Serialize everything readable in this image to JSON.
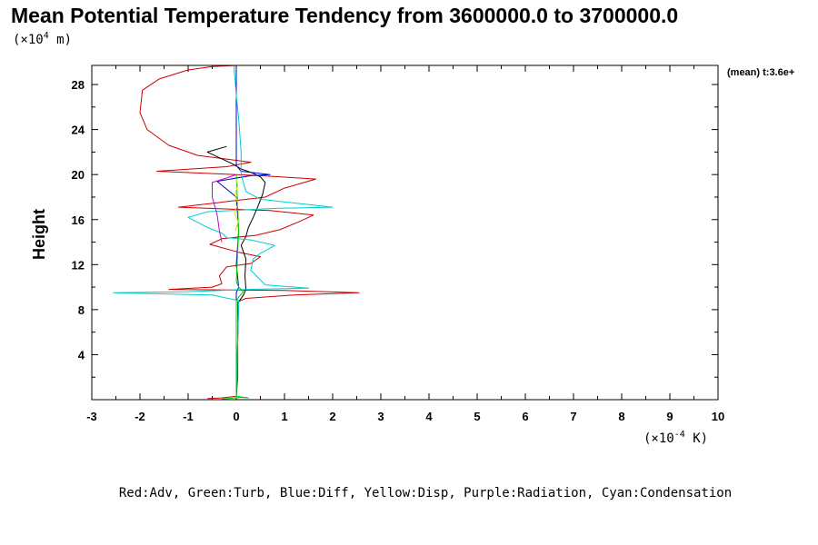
{
  "chart_data": {
    "type": "line",
    "title": "Mean Potential Temperature Tendency from 3600000.0 to 3700000.0",
    "ylabel": "Height",
    "y_unit": {
      "prefix": "(×10",
      "exp": "4",
      "suffix": " m)"
    },
    "x_unit": {
      "prefix": "(×10",
      "exp": "-4",
      "suffix": " K)"
    },
    "corner_label": "(mean) t:3.6e+",
    "legend_text": "Red:Adv, Green:Turb, Blue:Diff, Yellow:Disp, Purple:Radiation, Cyan:Condensation",
    "xlim": [
      -3,
      10
    ],
    "ylim": [
      0,
      29.7
    ],
    "x_ticks": [
      "-3",
      "-2",
      "-1",
      "0",
      "1",
      "2",
      "3",
      "4",
      "5",
      "6",
      "7",
      "8",
      "9",
      "10"
    ],
    "y_ticks": [
      "4",
      "8",
      "12",
      "16",
      "20",
      "24",
      "28"
    ],
    "series": [
      {
        "color": "#cc0000",
        "points": [
          [
            -0.6,
            0.1
          ],
          [
            -0.3,
            0.15
          ],
          [
            0,
            0.3
          ],
          [
            0.03,
            2
          ],
          [
            0.03,
            8.7
          ],
          [
            0.2,
            9.0
          ],
          [
            1.2,
            9.3
          ],
          [
            2.55,
            9.5
          ],
          [
            1.0,
            9.7
          ],
          [
            -1.4,
            9.8
          ],
          [
            -0.5,
            10.0
          ],
          [
            -0.3,
            10.3
          ],
          [
            -0.35,
            11.0
          ],
          [
            -0.2,
            11.8
          ],
          [
            0.3,
            12.1
          ],
          [
            0.5,
            12.7
          ],
          [
            0.05,
            13.1
          ],
          [
            -0.55,
            13.8
          ],
          [
            -0.3,
            14.3
          ],
          [
            0.4,
            14.6
          ],
          [
            0.9,
            15.1
          ],
          [
            1.3,
            15.8
          ],
          [
            1.6,
            16.4
          ],
          [
            0.7,
            16.8
          ],
          [
            -1.2,
            17.1
          ],
          [
            -0.4,
            17.5
          ],
          [
            0.6,
            18.0
          ],
          [
            1.0,
            18.8
          ],
          [
            1.65,
            19.6
          ],
          [
            0.5,
            19.9
          ],
          [
            -1.65,
            20.3
          ],
          [
            -0.2,
            20.7
          ],
          [
            0.3,
            21.1
          ],
          [
            -0.8,
            21.7
          ],
          [
            -1.4,
            22.6
          ],
          [
            -1.85,
            24.0
          ],
          [
            -2.0,
            25.5
          ],
          [
            -1.95,
            27.5
          ],
          [
            -1.6,
            28.5
          ],
          [
            -1.0,
            29.3
          ],
          [
            -0.5,
            29.6
          ],
          [
            0,
            29.7
          ]
        ]
      },
      {
        "color": "#000000",
        "points": [
          [
            0,
            0.2
          ],
          [
            0.05,
            8.7
          ],
          [
            0.15,
            9.3
          ],
          [
            0.2,
            9.8
          ],
          [
            0.18,
            11
          ],
          [
            0.2,
            12.5
          ],
          [
            0.1,
            13.7
          ],
          [
            0.2,
            14.5
          ],
          [
            0.25,
            15.3
          ],
          [
            0.35,
            16.2
          ],
          [
            0.45,
            17.2
          ],
          [
            0.55,
            18.3
          ],
          [
            0.6,
            19.3
          ],
          [
            0.5,
            19.8
          ],
          [
            0.3,
            20.2
          ],
          [
            0.1,
            20.5
          ],
          [
            -0.1,
            21.0
          ],
          [
            -0.4,
            21.6
          ],
          [
            -0.6,
            22.0
          ],
          [
            -0.2,
            22.5
          ]
        ]
      },
      {
        "color": "#0000cc",
        "points": [
          [
            0,
            0.2
          ],
          [
            0,
            9.5
          ],
          [
            0.05,
            10
          ],
          [
            0,
            12
          ],
          [
            0.05,
            15
          ],
          [
            0,
            18
          ],
          [
            -0.4,
            19.4
          ],
          [
            0.3,
            19.9
          ],
          [
            0.7,
            20.0
          ],
          [
            0.1,
            20.3
          ],
          [
            0,
            20.8
          ],
          [
            0,
            29.5
          ]
        ]
      },
      {
        "color": "#00cccc",
        "points": [
          [
            0,
            0.2
          ],
          [
            0.05,
            8.8
          ],
          [
            -0.5,
            9.3
          ],
          [
            -2.55,
            9.5
          ],
          [
            -1.0,
            9.6
          ],
          [
            0.2,
            9.8
          ],
          [
            1.5,
            9.9
          ],
          [
            0.6,
            10.2
          ],
          [
            0.3,
            11.5
          ],
          [
            0.35,
            12.5
          ],
          [
            0.5,
            13.0
          ],
          [
            0.8,
            13.7
          ],
          [
            0.3,
            14.2
          ],
          [
            -0.2,
            14.4
          ],
          [
            -0.3,
            14.8
          ],
          [
            -0.6,
            15.3
          ],
          [
            -1.0,
            16.2
          ],
          [
            -0.6,
            16.7
          ],
          [
            0.8,
            17.0
          ],
          [
            2.0,
            17.1
          ],
          [
            0.5,
            17.8
          ],
          [
            0.2,
            18.5
          ],
          [
            0.1,
            20
          ],
          [
            0.1,
            22
          ],
          [
            0.05,
            25
          ],
          [
            0,
            27
          ],
          [
            -0.05,
            29.7
          ]
        ]
      },
      {
        "color": "#cc00cc",
        "points": [
          [
            -0.3,
            14.0
          ],
          [
            -0.35,
            15.0
          ],
          [
            -0.4,
            16.5
          ],
          [
            -0.5,
            18.0
          ],
          [
            -0.5,
            19.3
          ],
          [
            -0.2,
            19.7
          ],
          [
            0,
            20.0
          ]
        ]
      },
      {
        "color": "#00cc00",
        "points": [
          [
            -0.3,
            0.05
          ],
          [
            0.1,
            0.2
          ],
          [
            0.25,
            0.15
          ],
          [
            0,
            0.3
          ],
          [
            0,
            8.8
          ],
          [
            0.05,
            9.1
          ],
          [
            0.15,
            9.6
          ],
          [
            0.05,
            10.0
          ],
          [
            0,
            10.5
          ],
          [
            0.05,
            15.0
          ],
          [
            0.02,
            18.0
          ],
          [
            0,
            20.0
          ]
        ]
      },
      {
        "color": "#dddd00",
        "points": [
          [
            -0.02,
            15.0
          ],
          [
            0.04,
            15.8
          ],
          [
            -0.04,
            16.6
          ],
          [
            0.04,
            17.4
          ],
          [
            -0.03,
            18.2
          ],
          [
            0.03,
            19.0
          ],
          [
            0,
            19.6
          ]
        ]
      }
    ]
  }
}
